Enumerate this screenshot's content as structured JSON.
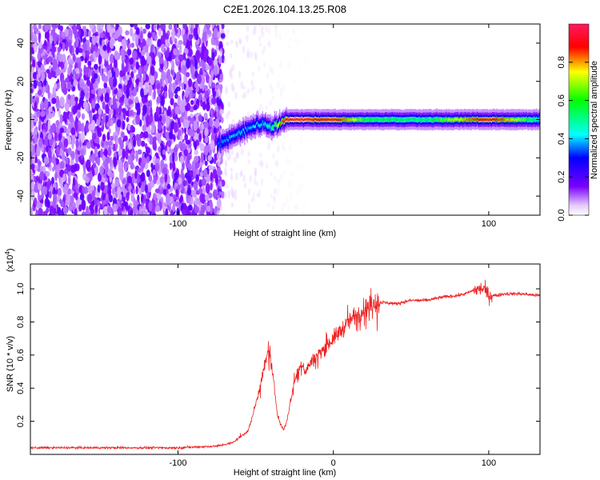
{
  "figure_title": "C2E1.2026.104.13.25.R08",
  "colors": {
    "snr_line": "#ee2222",
    "spectro_background": "#ffffff",
    "axis": "#000000"
  },
  "chart_data": [
    {
      "type": "heatmap",
      "title": "C2E1.2026.104.13.25.R08",
      "xlabel": "Height of straight line (km)",
      "ylabel": "Frequency (Hz)",
      "xlim": [
        -195,
        133
      ],
      "ylim": [
        -50,
        50
      ],
      "xticks": [
        -100,
        0,
        100
      ],
      "xtick_labels": [
        "-100",
        "",
        "100"
      ],
      "yticks": [
        -40,
        -20,
        0,
        20,
        40
      ],
      "ytick_labels": [
        "-40",
        "-20",
        "0",
        "20",
        "40"
      ],
      "colorbar": {
        "label": "Normalized spectral amplitude",
        "range": [
          0,
          1
        ],
        "ticks": [
          0.0,
          0.2,
          0.4,
          0.6,
          0.8
        ],
        "tick_labels": [
          "0.0",
          "0.2",
          "0.4",
          "0.6",
          "0.8"
        ]
      },
      "noise_region_x": [
        -195,
        -75
      ],
      "signal_track": {
        "x": [
          -75,
          -65,
          -55,
          -45,
          -40,
          -35,
          -30,
          -25,
          -20,
          -10,
          0,
          20,
          60,
          100,
          133
        ],
        "frequency_hz": [
          -13,
          -9,
          -4,
          -2,
          -4,
          -2,
          0,
          0,
          0,
          0,
          0,
          0,
          0,
          0,
          0
        ],
        "peak_amplitude": [
          0.35,
          0.4,
          0.4,
          0.45,
          0.5,
          0.8,
          0.95,
          1.0,
          1.0,
          0.9,
          0.95,
          0.6,
          0.55,
          0.95,
          0.5
        ]
      }
    },
    {
      "type": "line",
      "xlabel": "Height of straight line (km)",
      "ylabel": "SNR (10 * v/v)",
      "y_scale_note": "(x10",
      "y_scale_exponent": "4",
      "xlim": [
        -195,
        133
      ],
      "ylim": [
        0,
        1.15
      ],
      "xticks": [
        -100,
        0,
        100
      ],
      "xtick_labels": [
        "-100",
        "0",
        "100"
      ],
      "yticks": [
        0.2,
        0.4,
        0.6,
        0.8,
        1.0
      ],
      "ytick_labels": [
        "0.2",
        "0.4",
        "0.6",
        "0.8",
        "1.0"
      ],
      "series": [
        {
          "name": "SNR",
          "x": [
            -195,
            -150,
            -100,
            -75,
            -65,
            -55,
            -50,
            -45,
            -42,
            -40,
            -38,
            -36,
            -34,
            -32,
            -30,
            -28,
            -25,
            -20,
            -18,
            -15,
            -10,
            -5,
            0,
            5,
            10,
            15,
            20,
            25,
            30,
            40,
            50,
            60,
            70,
            80,
            85,
            90,
            95,
            97,
            100,
            105,
            110,
            120,
            133
          ],
          "y": [
            0.04,
            0.04,
            0.04,
            0.05,
            0.07,
            0.14,
            0.3,
            0.5,
            0.62,
            0.55,
            0.4,
            0.25,
            0.18,
            0.15,
            0.2,
            0.3,
            0.45,
            0.55,
            0.5,
            0.55,
            0.6,
            0.65,
            0.7,
            0.75,
            0.8,
            0.85,
            0.88,
            0.9,
            0.92,
            0.91,
            0.93,
            0.93,
            0.95,
            0.96,
            0.97,
            0.99,
            1.0,
            1.0,
            0.96,
            0.96,
            0.97,
            0.97,
            0.96
          ]
        }
      ]
    }
  ]
}
